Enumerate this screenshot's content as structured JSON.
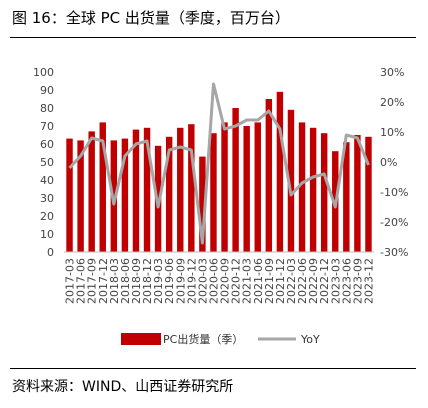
{
  "header": {
    "title": "图 16：全球 PC 出货量（季度，百万台）"
  },
  "footer": {
    "source": "资料来源：WIND、山西证券研究所"
  },
  "chart_data": {
    "type": "bar",
    "categories": [
      "2017-03",
      "2017-06",
      "2017-09",
      "2017-12",
      "2018-03",
      "2018-06",
      "2018-09",
      "2018-12",
      "2019-03",
      "2019-06",
      "2019-09",
      "2019-12",
      "2020-03",
      "2020-06",
      "2020-09",
      "2020-12",
      "2021-03",
      "2021-06",
      "2021-09",
      "2021-12",
      "2022-03",
      "2022-06",
      "2022-09",
      "2022-12",
      "2023-03",
      "2023-06",
      "2023-09",
      "2023-12"
    ],
    "tick_labels": [
      "2017-03",
      "2017-06",
      "2017-09",
      "2017-12",
      "2018-03",
      "2018-06",
      "2018-09",
      "2018-12",
      "2019-03",
      "2019-06",
      "2019-09",
      "2019-12",
      "2020-03",
      "2020-06",
      "2020-09",
      "2020-12",
      "2021-03",
      "2021-06",
      "2021-09",
      "2021-12",
      "2022-03",
      "2022-06",
      "2022-09",
      "2022-12",
      "2023-03",
      "2023-06",
      "2023-09",
      "2023-12"
    ],
    "series": [
      {
        "name": "PC出货量（季）",
        "type": "bar",
        "axis": "left",
        "color": "#c00000",
        "values": [
          63,
          62,
          67,
          72,
          62,
          63,
          68,
          69,
          59,
          64,
          69,
          71,
          53,
          66,
          72,
          80,
          70,
          72,
          85,
          89,
          79,
          72,
          69,
          66,
          56,
          61,
          65,
          64
        ]
      },
      {
        "name": "YoY",
        "type": "line",
        "axis": "right",
        "color": "#a6a6a6",
        "values": [
          -2,
          2,
          8,
          7,
          -14,
          2,
          6,
          7,
          -15,
          4,
          5,
          4,
          -27,
          26,
          11,
          12,
          14,
          14,
          17,
          11,
          -11,
          -7,
          -5,
          -4,
          -15,
          9,
          8,
          -1
        ]
      }
    ],
    "ylim": [
      0,
      100
    ],
    "yticks": [
      0,
      10,
      20,
      30,
      40,
      50,
      60,
      70,
      80,
      90,
      100
    ],
    "y2lim": [
      -30,
      30
    ],
    "y2ticks": [
      -30,
      -20,
      -10,
      0,
      10,
      20,
      30
    ],
    "y2tick_labels": [
      "-30%",
      "-20%",
      "-10%",
      "0%",
      "10%",
      "20%",
      "30%"
    ],
    "grid": false,
    "legend": {
      "position": "bottom",
      "entries": [
        "PC出货量（季）",
        "YoY"
      ]
    }
  }
}
